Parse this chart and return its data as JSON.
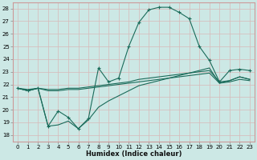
{
  "xlabel": "Humidex (Indice chaleur)",
  "xlim": [
    -0.5,
    23.5
  ],
  "ylim": [
    17.5,
    28.5
  ],
  "xticks": [
    0,
    1,
    2,
    3,
    4,
    5,
    6,
    7,
    8,
    9,
    10,
    11,
    12,
    13,
    14,
    15,
    16,
    17,
    18,
    19,
    20,
    21,
    22,
    23
  ],
  "yticks": [
    18,
    19,
    20,
    21,
    22,
    23,
    24,
    25,
    26,
    27,
    28
  ],
  "bg_color": "#cce8e5",
  "line_color": "#1a6b5a",
  "grid_color": "#c8d8d6",
  "line1_x": [
    0,
    1,
    2,
    3,
    4,
    5,
    6,
    7,
    8,
    9,
    10,
    11,
    12,
    13,
    14,
    15,
    16,
    17,
    18,
    19,
    20,
    21,
    22,
    23
  ],
  "line1_y": [
    21.7,
    21.5,
    21.7,
    18.7,
    19.9,
    19.4,
    18.5,
    19.3,
    23.3,
    22.2,
    22.5,
    25.0,
    26.9,
    27.9,
    28.1,
    28.1,
    27.7,
    27.2,
    25.0,
    23.9,
    22.2,
    23.1,
    23.2,
    23.1
  ],
  "line2_x": [
    0,
    1,
    2,
    3,
    4,
    5,
    6,
    7,
    8,
    9,
    10,
    11,
    12,
    13,
    14,
    15,
    16,
    17,
    18,
    19,
    20,
    21,
    22,
    23
  ],
  "line2_y": [
    21.7,
    21.6,
    21.7,
    21.6,
    21.6,
    21.7,
    21.7,
    21.8,
    21.9,
    22.0,
    22.1,
    22.2,
    22.4,
    22.5,
    22.6,
    22.7,
    22.8,
    22.9,
    23.0,
    23.1,
    22.2,
    22.3,
    22.6,
    22.4
  ],
  "line3_x": [
    0,
    1,
    2,
    3,
    4,
    5,
    6,
    7,
    8,
    9,
    10,
    11,
    12,
    13,
    14,
    15,
    16,
    17,
    18,
    19,
    20,
    21,
    22,
    23
  ],
  "line3_y": [
    21.7,
    21.5,
    21.7,
    21.5,
    21.5,
    21.6,
    21.6,
    21.7,
    21.8,
    21.9,
    22.0,
    22.1,
    22.2,
    22.3,
    22.4,
    22.5,
    22.6,
    22.7,
    22.8,
    22.9,
    22.1,
    22.2,
    22.4,
    22.3
  ],
  "line4_x": [
    0,
    1,
    2,
    3,
    4,
    5,
    6,
    7,
    8,
    9,
    10,
    11,
    12,
    13,
    14,
    15,
    16,
    17,
    18,
    19,
    20,
    21,
    22,
    23
  ],
  "line4_y": [
    21.7,
    21.5,
    21.7,
    18.7,
    18.8,
    19.1,
    18.5,
    19.2,
    20.2,
    20.7,
    21.1,
    21.5,
    21.9,
    22.1,
    22.3,
    22.5,
    22.7,
    22.9,
    23.1,
    23.3,
    22.1,
    22.3,
    22.6,
    22.4
  ]
}
